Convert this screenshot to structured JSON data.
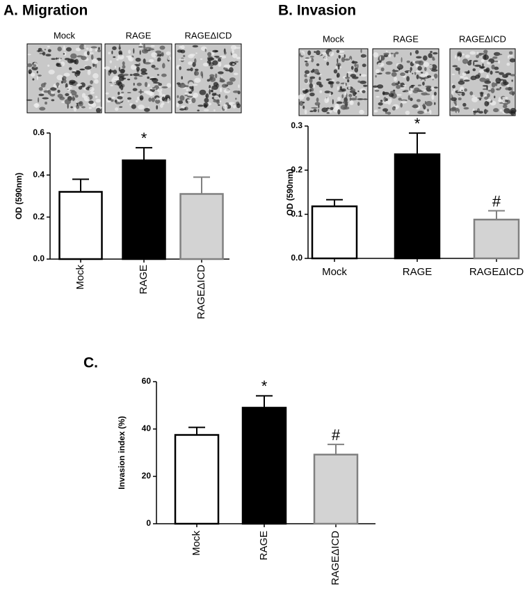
{
  "chart_data": [
    {
      "type": "bar",
      "title": "A.  Migration",
      "ylabel": "OD (590nm)",
      "categories": [
        "Mock",
        "RAGE",
        "RAGEΔICD"
      ],
      "values": [
        0.32,
        0.47,
        0.31
      ],
      "errors": [
        0.06,
        0.06,
        0.08
      ],
      "bar_labels": [
        null,
        "*",
        null
      ],
      "colors": [
        "#ffffff",
        "#000000",
        "#d3d3d3"
      ],
      "edge_colors": [
        "#000000",
        "#000000",
        "#808080"
      ],
      "ylim": [
        0,
        0.6
      ],
      "yticks": [
        {
          "value": 0,
          "label": "0.0"
        },
        0.2,
        0.4,
        0.6
      ]
    },
    {
      "type": "bar",
      "title": "B.  Invasion",
      "ylabel": "OD (590nm)",
      "categories": [
        "Mock",
        "RAGE",
        "RAGEΔICD"
      ],
      "values": [
        0.118,
        0.236,
        0.088
      ],
      "errors": [
        0.015,
        0.048,
        0.02
      ],
      "bar_labels": [
        null,
        "*",
        "#"
      ],
      "colors": [
        "#ffffff",
        "#000000",
        "#d3d3d3"
      ],
      "edge_colors": [
        "#000000",
        "#000000",
        "#808080"
      ],
      "ylim": [
        0,
        0.3
      ],
      "yticks": [
        {
          "value": 0,
          "label": "0.0"
        },
        0.1,
        0.2,
        0.3
      ]
    },
    {
      "type": "bar",
      "title": "C.",
      "ylabel": "Invasion index (%)",
      "categories": [
        "Mock",
        "RAGE",
        "RAGEΔICD"
      ],
      "values": [
        37.5,
        49,
        29.2
      ],
      "errors": [
        3.2,
        5,
        4.3
      ],
      "bar_labels": [
        null,
        "*",
        "#"
      ],
      "colors": [
        "#ffffff",
        "#000000",
        "#d3d3d3"
      ],
      "edge_colors": [
        "#000000",
        "#000000",
        "#808080"
      ],
      "ylim": [
        0,
        60
      ],
      "yticks": [
        0,
        20,
        40,
        60
      ]
    }
  ]
}
